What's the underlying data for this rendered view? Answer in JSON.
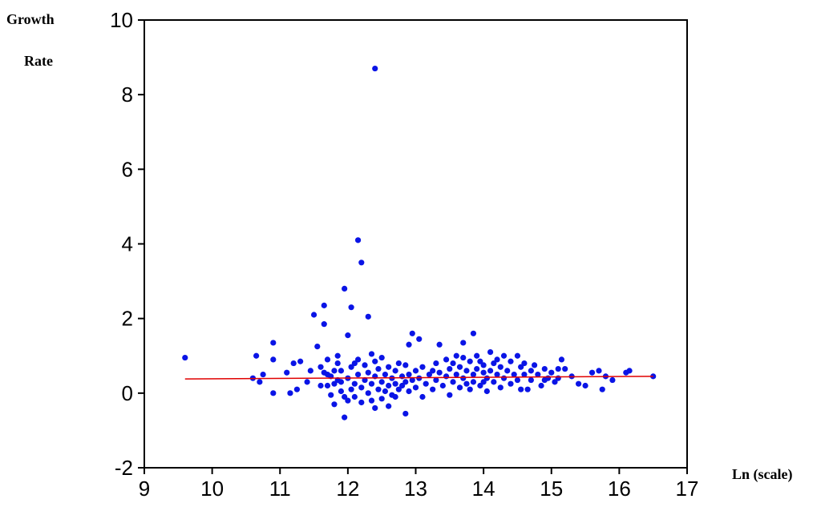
{
  "chart_data": {
    "type": "scatter",
    "ylabel_lines": [
      "Growth",
      "Rate"
    ],
    "xlabel": "Ln (scale)",
    "xlim": [
      9,
      17
    ],
    "ylim": [
      -2,
      10
    ],
    "x_ticks": [
      9,
      10,
      11,
      12,
      13,
      14,
      15,
      16,
      17
    ],
    "y_ticks": [
      -2,
      0,
      2,
      4,
      6,
      8,
      10
    ],
    "x_tick_labels": [
      "9",
      "10",
      "11",
      "12",
      "13",
      "14",
      "15",
      "16",
      "17"
    ],
    "y_tick_labels": [
      "-2",
      "0",
      "2",
      "4",
      "6",
      "8",
      "10"
    ],
    "grid": false,
    "point_color": "#0a14e6",
    "fit_line_color": "#e00000",
    "fit_line": {
      "x": [
        9.6,
        16.5
      ],
      "y": [
        0.38,
        0.45
      ]
    },
    "points": [
      [
        9.6,
        0.95
      ],
      [
        10.65,
        1.0
      ],
      [
        10.6,
        0.4
      ],
      [
        10.7,
        0.3
      ],
      [
        10.75,
        0.5
      ],
      [
        10.9,
        1.35
      ],
      [
        10.9,
        0.9
      ],
      [
        10.9,
        0.0
      ],
      [
        11.1,
        0.55
      ],
      [
        11.15,
        0.0
      ],
      [
        11.2,
        0.8
      ],
      [
        11.25,
        0.1
      ],
      [
        11.3,
        0.85
      ],
      [
        11.4,
        0.3
      ],
      [
        11.45,
        0.6
      ],
      [
        11.5,
        2.1
      ],
      [
        11.55,
        1.25
      ],
      [
        11.6,
        0.7
      ],
      [
        11.65,
        2.35
      ],
      [
        11.65,
        1.85
      ],
      [
        11.7,
        0.9
      ],
      [
        11.7,
        0.2
      ],
      [
        11.75,
        0.45
      ],
      [
        11.8,
        -0.3
      ],
      [
        11.8,
        0.6
      ],
      [
        11.85,
        1.0
      ],
      [
        11.9,
        0.3
      ],
      [
        11.95,
        -0.1
      ],
      [
        11.95,
        2.8
      ],
      [
        11.95,
        -0.65
      ],
      [
        12.0,
        1.55
      ],
      [
        12.05,
        2.3
      ],
      [
        12.1,
        0.8
      ],
      [
        12.15,
        4.1
      ],
      [
        12.2,
        3.5
      ],
      [
        12.3,
        2.05
      ],
      [
        12.35,
        1.05
      ],
      [
        12.4,
        8.7
      ],
      [
        12.4,
        -0.4
      ],
      [
        12.5,
        0.95
      ],
      [
        12.6,
        -0.35
      ],
      [
        12.7,
        -0.1
      ],
      [
        12.8,
        0.2
      ],
      [
        12.85,
        -0.55
      ],
      [
        12.9,
        1.3
      ],
      [
        12.95,
        1.6
      ],
      [
        13.05,
        1.45
      ],
      [
        13.1,
        -0.1
      ],
      [
        13.25,
        0.6
      ],
      [
        13.35,
        1.3
      ],
      [
        13.5,
        -0.05
      ],
      [
        13.6,
        1.0
      ],
      [
        13.7,
        1.35
      ],
      [
        13.85,
        1.6
      ],
      [
        13.9,
        1.0
      ],
      [
        14.0,
        0.3
      ],
      [
        14.1,
        1.1
      ],
      [
        14.2,
        0.9
      ],
      [
        14.3,
        1.0
      ],
      [
        14.5,
        1.0
      ],
      [
        14.6,
        0.5
      ],
      [
        14.65,
        0.1
      ],
      [
        14.75,
        0.75
      ],
      [
        14.9,
        0.35
      ],
      [
        15.0,
        0.55
      ],
      [
        15.1,
        0.4
      ],
      [
        15.15,
        0.9
      ],
      [
        15.2,
        0.65
      ],
      [
        15.3,
        0.45
      ],
      [
        15.4,
        0.25
      ],
      [
        15.5,
        0.2
      ],
      [
        15.6,
        0.55
      ],
      [
        15.7,
        0.6
      ],
      [
        15.75,
        0.1
      ],
      [
        15.8,
        0.45
      ],
      [
        15.9,
        0.35
      ],
      [
        16.1,
        0.55
      ],
      [
        16.15,
        0.6
      ],
      [
        16.5,
        0.45
      ],
      [
        11.6,
        0.2
      ],
      [
        11.65,
        0.55
      ],
      [
        11.7,
        0.5
      ],
      [
        11.75,
        -0.05
      ],
      [
        11.8,
        0.25
      ],
      [
        11.85,
        0.35
      ],
      [
        11.85,
        0.8
      ],
      [
        11.9,
        0.6
      ],
      [
        11.9,
        0.05
      ],
      [
        12.0,
        0.4
      ],
      [
        12.0,
        -0.2
      ],
      [
        12.05,
        0.1
      ],
      [
        12.05,
        0.7
      ],
      [
        12.1,
        0.25
      ],
      [
        12.1,
        -0.1
      ],
      [
        12.15,
        0.5
      ],
      [
        12.15,
        0.9
      ],
      [
        12.2,
        0.15
      ],
      [
        12.2,
        -0.25
      ],
      [
        12.25,
        0.35
      ],
      [
        12.25,
        0.75
      ],
      [
        12.3,
        0.0
      ],
      [
        12.3,
        0.55
      ],
      [
        12.35,
        0.25
      ],
      [
        12.35,
        -0.2
      ],
      [
        12.4,
        0.45
      ],
      [
        12.4,
        0.85
      ],
      [
        12.45,
        0.1
      ],
      [
        12.45,
        0.65
      ],
      [
        12.5,
        0.3
      ],
      [
        12.5,
        -0.15
      ],
      [
        12.55,
        0.5
      ],
      [
        12.55,
        0.05
      ],
      [
        12.6,
        0.7
      ],
      [
        12.6,
        0.2
      ],
      [
        12.65,
        0.4
      ],
      [
        12.65,
        -0.05
      ],
      [
        12.7,
        0.6
      ],
      [
        12.7,
        0.25
      ],
      [
        12.75,
        0.1
      ],
      [
        12.75,
        0.8
      ],
      [
        12.8,
        0.45
      ],
      [
        12.85,
        0.3
      ],
      [
        12.85,
        0.75
      ],
      [
        12.9,
        0.05
      ],
      [
        12.9,
        0.5
      ],
      [
        12.95,
        0.35
      ],
      [
        13.0,
        0.6
      ],
      [
        13.0,
        0.15
      ],
      [
        13.05,
        0.4
      ],
      [
        13.1,
        0.7
      ],
      [
        13.15,
        0.25
      ],
      [
        13.2,
        0.5
      ],
      [
        13.25,
        0.1
      ],
      [
        13.3,
        0.8
      ],
      [
        13.3,
        0.35
      ],
      [
        13.35,
        0.55
      ],
      [
        13.4,
        0.2
      ],
      [
        13.45,
        0.45
      ],
      [
        13.45,
        0.9
      ],
      [
        13.5,
        0.65
      ],
      [
        13.55,
        0.3
      ],
      [
        13.55,
        0.8
      ],
      [
        13.6,
        0.5
      ],
      [
        13.65,
        0.15
      ],
      [
        13.65,
        0.7
      ],
      [
        13.7,
        0.4
      ],
      [
        13.7,
        0.95
      ],
      [
        13.75,
        0.25
      ],
      [
        13.75,
        0.6
      ],
      [
        13.8,
        0.85
      ],
      [
        13.8,
        0.1
      ],
      [
        13.85,
        0.5
      ],
      [
        13.85,
        0.3
      ],
      [
        13.9,
        0.65
      ],
      [
        13.95,
        0.2
      ],
      [
        13.95,
        0.85
      ],
      [
        14.0,
        0.55
      ],
      [
        14.0,
        0.75
      ],
      [
        14.05,
        0.4
      ],
      [
        14.05,
        0.05
      ],
      [
        14.1,
        0.6
      ],
      [
        14.15,
        0.3
      ],
      [
        14.15,
        0.8
      ],
      [
        14.2,
        0.5
      ],
      [
        14.25,
        0.15
      ],
      [
        14.25,
        0.7
      ],
      [
        14.3,
        0.4
      ],
      [
        14.35,
        0.6
      ],
      [
        14.4,
        0.25
      ],
      [
        14.4,
        0.85
      ],
      [
        14.45,
        0.5
      ],
      [
        14.5,
        0.35
      ],
      [
        14.55,
        0.7
      ],
      [
        14.55,
        0.1
      ],
      [
        14.6,
        0.8
      ],
      [
        14.7,
        0.35
      ],
      [
        14.7,
        0.6
      ],
      [
        14.8,
        0.5
      ],
      [
        14.85,
        0.2
      ],
      [
        14.9,
        0.65
      ],
      [
        14.95,
        0.4
      ],
      [
        15.05,
        0.3
      ],
      [
        15.1,
        0.65
      ]
    ]
  }
}
